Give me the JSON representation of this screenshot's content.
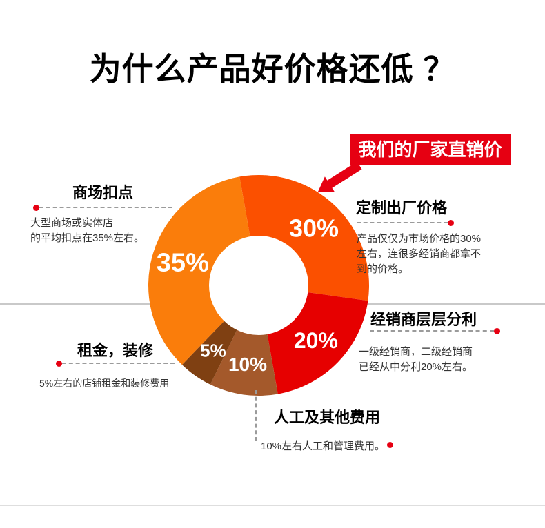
{
  "title": "为什么产品好价格还低 ？",
  "banner": {
    "label": "我们的厂家直销价",
    "bg": "#e60012"
  },
  "colors": {
    "accent_red": "#e60012",
    "line_gray": "#9b9b9b",
    "divider_gray": "#c9c9c9"
  },
  "chart_data": {
    "type": "pie",
    "donut": true,
    "start_angle": -10,
    "inner_radius_ratio": 0.45,
    "unit": "%",
    "legend_position": "callouts-around-chart",
    "segments": [
      {
        "label": "定制出厂价格",
        "value": 30,
        "pct_label": "30%",
        "color": "#FB5000"
      },
      {
        "label": "经销商层层分利",
        "value": 20,
        "pct_label": "20%",
        "color": "#E60000"
      },
      {
        "label": "人工及其他费用",
        "value": 10,
        "pct_label": "10%",
        "color": "#A4592B"
      },
      {
        "label": "租金，装修",
        "value": 5,
        "pct_label": "5%",
        "color": "#7F4012"
      },
      {
        "label": "商场扣点",
        "value": 35,
        "pct_label": "35%",
        "color": "#FA7D0B"
      }
    ]
  },
  "callouts": {
    "mall": {
      "title": "商场扣点",
      "desc": [
        "大型商场或实体店",
        "的平均扣点在35%左右。"
      ]
    },
    "rent": {
      "title": "租金，装修",
      "desc": [
        "5%左右的店铺租金和装修费用"
      ]
    },
    "factory": {
      "title": "定制出厂价格",
      "desc": [
        "产品仅仅为市场价格的30%",
        "左右，连很多经销商都拿不",
        "到的价格。"
      ]
    },
    "distributor": {
      "title": "经销商层层分利",
      "desc": [
        "一级经销商，二级经销商",
        "已经从中分利20%左右。"
      ]
    },
    "labor": {
      "title": "人工及其他费用",
      "desc": [
        "10%左右人工和管理费用。"
      ]
    }
  }
}
